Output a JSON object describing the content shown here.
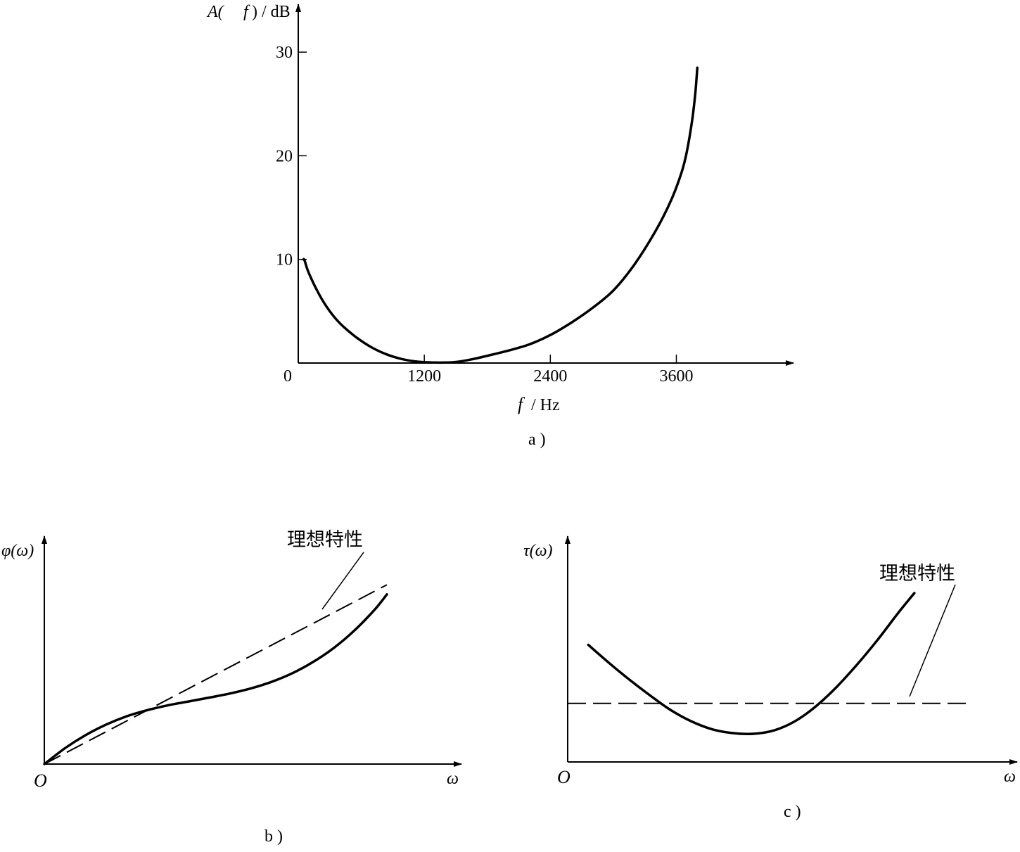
{
  "chart_data": [
    {
      "id": "a",
      "type": "line",
      "panel_label": "a )",
      "ylabel_prefix": "A(",
      "ylabel_var": "f",
      "ylabel_suffix": ") / dB",
      "xlabel_var": "f",
      "xlabel_unit": "/ Hz",
      "origin_label": "0",
      "xticks": [
        1200,
        2400,
        3600
      ],
      "xtick_labels": [
        "1200",
        "2400",
        "3600"
      ],
      "yticks": [
        10,
        20,
        30
      ],
      "ytick_labels": [
        "10",
        "20",
        "30"
      ],
      "xlim": [
        0,
        4700
      ],
      "ylim": [
        0,
        32
      ],
      "series": [
        {
          "x": [
            50,
            60,
            100,
            200,
            300,
            400,
            550,
            700,
            850,
            1000,
            1150,
            1300,
            1400,
            1500,
            1650,
            1800,
            2000,
            2200,
            2400,
            2600,
            2800,
            3000,
            3200,
            3400,
            3550,
            3650,
            3700,
            3750,
            3780,
            3800
          ],
          "y": [
            10,
            9.9,
            8.7,
            6.6,
            5.0,
            3.8,
            2.5,
            1.5,
            0.8,
            0.35,
            0.12,
            0.05,
            0.05,
            0.1,
            0.35,
            0.7,
            1.2,
            1.8,
            2.7,
            3.9,
            5.3,
            7.0,
            9.5,
            12.7,
            15.7,
            18.4,
            20.4,
            23.4,
            26.0,
            28.5
          ]
        }
      ]
    },
    {
      "id": "b",
      "type": "line",
      "panel_label": "b )",
      "ylabel": "φ(ω)",
      "xlabel": "ω",
      "origin_label": "O",
      "annotation": "理想特性",
      "series": [
        {
          "style": "solid",
          "x": [
            0,
            0.5,
            1,
            1.5,
            2,
            2.5,
            3,
            3.5,
            4,
            4.5,
            5,
            5.5,
            6,
            6.5,
            7,
            7.5,
            8,
            8.3
          ],
          "y": [
            0,
            0.82,
            1.5,
            2.05,
            2.48,
            2.8,
            3.05,
            3.25,
            3.45,
            3.66,
            3.92,
            4.26,
            4.7,
            5.28,
            6.0,
            6.9,
            8.0,
            8.8
          ]
        },
        {
          "style": "dashed",
          "x": [
            0,
            8.3
          ],
          "y": [
            0,
            9.3
          ]
        }
      ]
    },
    {
      "id": "c",
      "type": "line",
      "panel_label": "c )",
      "ylabel": "τ(ω)",
      "xlabel": "ω",
      "origin_label": "O",
      "annotation": "理想特性",
      "series": [
        {
          "style": "solid",
          "x": [
            0.5,
            1.0,
            1.5,
            2.0,
            2.5,
            3.0,
            3.5,
            4.0,
            4.5,
            5.0,
            5.5,
            6.0,
            6.5,
            7.0,
            7.5,
            8.0,
            8.4
          ],
          "y": [
            5.2,
            4.4,
            3.65,
            2.95,
            2.3,
            1.8,
            1.45,
            1.28,
            1.25,
            1.4,
            1.8,
            2.45,
            3.3,
            4.3,
            5.4,
            6.6,
            7.5
          ]
        },
        {
          "style": "dashed",
          "x": [
            0,
            9.8
          ],
          "y": [
            2.6,
            2.6
          ]
        }
      ]
    }
  ]
}
